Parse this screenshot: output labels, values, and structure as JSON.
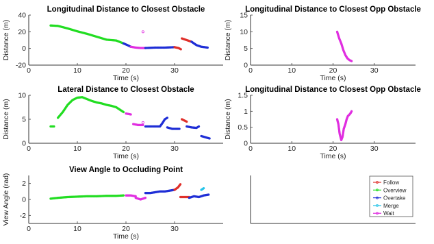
{
  "colors": {
    "Follow": "#e0302a",
    "Overview": "#22dd22",
    "Overtake": "#1f2fd6",
    "Merge": "#28c4e8",
    "Wait": "#e02ee0"
  },
  "legend": {
    "placement": "bottom-right panel",
    "entries": [
      "Follow",
      "Overview",
      "Overtake",
      "Merge",
      "Wait"
    ]
  },
  "chart_data": [
    {
      "id": "p1",
      "type": "scatter",
      "title": "Longitudinal Distance to Closest Obstacle",
      "xlabel": "Time (s)",
      "ylabel": "Distance (m)",
      "xlim": [
        0,
        40
      ],
      "ylim": [
        -20,
        40
      ],
      "xticks": [
        0,
        10,
        20,
        30
      ],
      "yticks": [
        -20,
        0,
        20,
        40
      ],
      "series": [
        {
          "name": "Overview",
          "x": [
            4.5,
            6,
            8,
            10,
            12,
            14,
            16,
            18,
            19.5
          ],
          "y": [
            27.5,
            27,
            24,
            20.5,
            17.5,
            14,
            10.5,
            9.5,
            6
          ]
        },
        {
          "name": "Overtake",
          "x": [
            19.5,
            20.3,
            21
          ],
          "y": [
            6,
            4,
            2
          ]
        },
        {
          "name": "Wait",
          "x": [
            21,
            22,
            23,
            24
          ],
          "y": [
            2,
            1,
            0.5,
            0.5
          ]
        },
        {
          "name": "Wait",
          "x": [
            23.5
          ],
          "y": [
            20
          ]
        },
        {
          "name": "Overtake",
          "x": [
            24,
            26,
            28,
            30
          ],
          "y": [
            0.5,
            1,
            1,
            1.5
          ]
        },
        {
          "name": "Follow",
          "x": [
            30,
            30.8,
            31.3
          ],
          "y": [
            1.5,
            0.5,
            -1
          ]
        },
        {
          "name": "Follow",
          "x": [
            31.5,
            32.5,
            33.5
          ],
          "y": [
            12,
            10,
            8
          ]
        },
        {
          "name": "Overtake",
          "x": [
            33.5,
            34.5,
            35.5,
            36.8
          ],
          "y": [
            8,
            4,
            2,
            1
          ]
        }
      ]
    },
    {
      "id": "p2",
      "type": "scatter",
      "title": "Longitudinal Distance to Closest Opp Obstacle",
      "xlabel": "Time (s)",
      "ylabel": "Distance (m)",
      "xlim": [
        0,
        40
      ],
      "ylim": [
        0,
        15
      ],
      "xticks": [
        0,
        10,
        20,
        30
      ],
      "yticks": [
        0,
        5,
        10,
        15
      ],
      "series": [
        {
          "name": "Wait",
          "x": [
            21,
            21.5,
            22,
            22.5,
            23,
            23.5,
            24,
            24.5
          ],
          "y": [
            10,
            8,
            6.5,
            4.5,
            3,
            2,
            1.5,
            1.2
          ]
        }
      ]
    },
    {
      "id": "p3",
      "type": "scatter",
      "title": "Lateral Distance to Closest Obstacle",
      "xlabel": "Time (s)",
      "ylabel": "Distance (m)",
      "xlim": [
        0,
        40
      ],
      "ylim": [
        0,
        10
      ],
      "xticks": [
        0,
        10,
        20,
        30
      ],
      "yticks": [
        0,
        5,
        10
      ],
      "series": [
        {
          "name": "Overview",
          "x": [
            4.5,
            5.2
          ],
          "y": [
            3.5,
            3.5
          ]
        },
        {
          "name": "Overview",
          "x": [
            6,
            7,
            8,
            9,
            10,
            11,
            12,
            13,
            14,
            15,
            16,
            17,
            18,
            19.5
          ],
          "y": [
            5.3,
            6.5,
            8,
            9,
            9.5,
            9.6,
            9.2,
            8.8,
            8.5,
            8.3,
            8,
            7.8,
            7.5,
            6.5
          ]
        },
        {
          "name": "Wait",
          "x": [
            20,
            21
          ],
          "y": [
            6.2,
            6
          ]
        },
        {
          "name": "Wait",
          "x": [
            21.5,
            22.5,
            23.5
          ],
          "y": [
            4,
            3.8,
            3.8
          ]
        },
        {
          "name": "Wait",
          "x": [
            23.5
          ],
          "y": [
            4.3
          ]
        },
        {
          "name": "Overtake",
          "x": [
            24,
            25,
            26,
            27,
            27.5,
            28,
            28.5
          ],
          "y": [
            3.5,
            3.5,
            3.5,
            3.5,
            4.2,
            5,
            5.3
          ]
        },
        {
          "name": "Overtake",
          "x": [
            28.5,
            29.5,
            30.5,
            31
          ],
          "y": [
            3.3,
            3,
            3,
            3
          ]
        },
        {
          "name": "Follow",
          "x": [
            31.5,
            32.5
          ],
          "y": [
            5,
            4.5
          ]
        },
        {
          "name": "Overtake",
          "x": [
            32.5,
            33.5,
            34.5,
            35
          ],
          "y": [
            3.5,
            3.3,
            3.2,
            3.5
          ]
        },
        {
          "name": "Overtake",
          "x": [
            35.5,
            36.5,
            37.2
          ],
          "y": [
            1.5,
            1.2,
            1
          ]
        }
      ]
    },
    {
      "id": "p4",
      "type": "scatter",
      "title": "Longitudinal Distance to Closest Opp Obstacle",
      "xlabel": "Time (s)",
      "ylabel": "Distance (m)",
      "xlim": [
        0,
        40
      ],
      "ylim": [
        0,
        1.5
      ],
      "xticks": [
        0,
        10,
        20,
        30
      ],
      "yticks": [
        0,
        0.5,
        1,
        1.5
      ],
      "series": [
        {
          "name": "Wait",
          "x": [
            21,
            21.3,
            21.6,
            22,
            22.3,
            22.6,
            23,
            23.3,
            23.6,
            24,
            24.3,
            24.5
          ],
          "y": [
            0.75,
            0.6,
            0.3,
            0.1,
            0.2,
            0.45,
            0.6,
            0.75,
            0.85,
            0.9,
            0.95,
            1.0
          ]
        }
      ]
    },
    {
      "id": "p5",
      "type": "scatter",
      "title": "View Angle to Occluding Point",
      "xlabel": "Time (s)",
      "ylabel": "View Angle (rad)",
      "xlim": [
        0,
        40
      ],
      "ylim": [
        -3,
        3
      ],
      "xticks": [
        0,
        10,
        20,
        30
      ],
      "yticks": [
        -2,
        0,
        2
      ],
      "series": [
        {
          "name": "Overview",
          "x": [
            4.5,
            6,
            8,
            10,
            12,
            14,
            16,
            18,
            19.5
          ],
          "y": [
            0.1,
            0.2,
            0.3,
            0.35,
            0.4,
            0.4,
            0.45,
            0.45,
            0.5
          ]
        },
        {
          "name": "Wait",
          "x": [
            20,
            21,
            22
          ],
          "y": [
            0.5,
            0.5,
            0.4
          ]
        },
        {
          "name": "Wait",
          "x": [
            22,
            23,
            24
          ],
          "y": [
            0.2,
            0,
            0.2
          ]
        },
        {
          "name": "Overtake",
          "x": [
            24,
            25,
            26,
            27,
            28,
            29,
            30
          ],
          "y": [
            0.8,
            0.8,
            0.9,
            1.0,
            1.0,
            1.1,
            1.2
          ]
        },
        {
          "name": "Follow",
          "x": [
            30,
            30.7,
            31.2
          ],
          "y": [
            1.2,
            1.5,
            1.9
          ]
        },
        {
          "name": "Follow",
          "x": [
            31.2,
            32,
            33
          ],
          "y": [
            0.3,
            0.3,
            0.3
          ]
        },
        {
          "name": "Overtake",
          "x": [
            33,
            34,
            35,
            36,
            37
          ],
          "y": [
            0.2,
            0.4,
            0.3,
            0.5,
            0.6
          ]
        },
        {
          "name": "Merge",
          "x": [
            35.5,
            36
          ],
          "y": [
            1.2,
            1.4
          ]
        }
      ]
    }
  ]
}
